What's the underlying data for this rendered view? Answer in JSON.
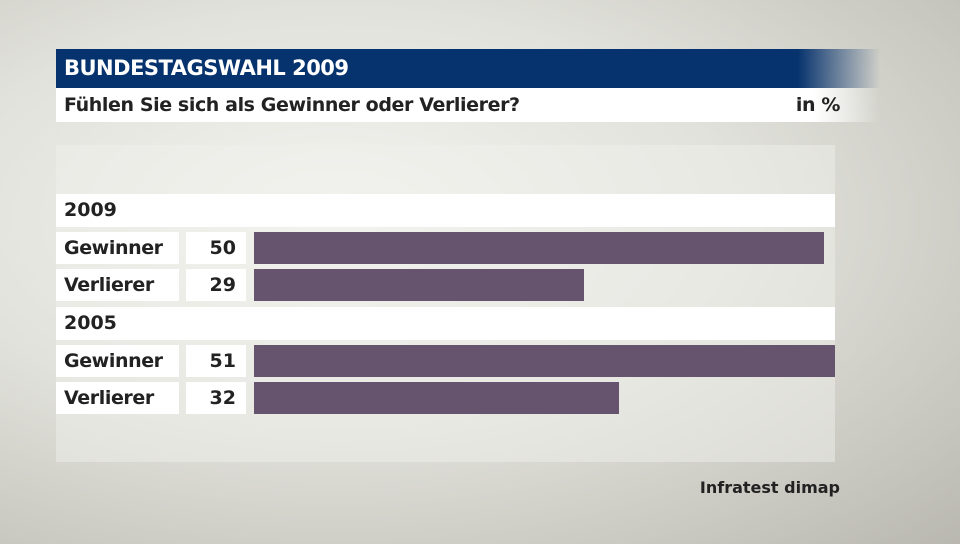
{
  "header": {
    "title": "BUNDESTAGSWAHL 2009",
    "subtitle": "Fühlen Sie sich als Gewinner oder Verlierer?",
    "unit": "in %"
  },
  "source": "Infratest dimap",
  "chart_data": {
    "type": "bar",
    "orientation": "horizontal",
    "bar_color": "#66546f",
    "groups": [
      {
        "name": "2009",
        "categories": [
          "Gewinner",
          "Verlierer"
        ],
        "values": [
          50,
          29
        ]
      },
      {
        "name": "2005",
        "categories": [
          "Gewinner",
          "Verlierer"
        ],
        "values": [
          51,
          32
        ]
      }
    ]
  }
}
